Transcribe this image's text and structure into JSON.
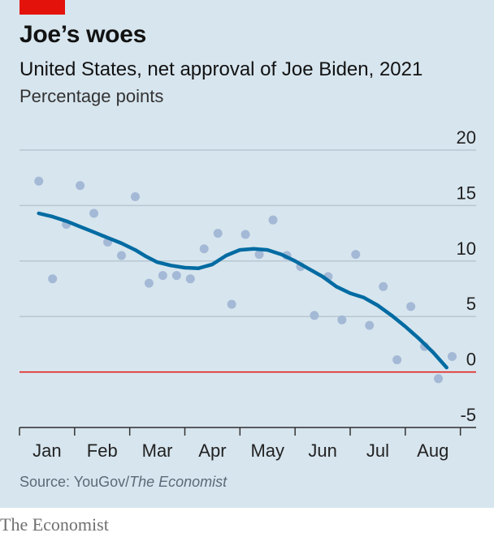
{
  "header": {
    "title": "Joe’s woes",
    "subtitle": "United States, net approval of Joe Biden, 2021",
    "unit": "Percentage points"
  },
  "footer": {
    "source_prefix": "Source: YouGov/",
    "source_italic": "The Economist",
    "brand": "The Economist"
  },
  "colors": {
    "accent": "#e3120b",
    "trend_line": "#006ba2",
    "dots": "#a4b9d6",
    "zero_line": "#e3120b",
    "gridline": "#b7c6d0",
    "panel": "#d7e5ee"
  },
  "chart_data": {
    "type": "scatter",
    "title": "Joe’s woes",
    "subtitle": "United States, net approval of Joe Biden, 2021",
    "ylabel": "Percentage points",
    "xlabel": "",
    "ylim": [
      -5,
      20
    ],
    "yticks": [
      20,
      15,
      10,
      5,
      0,
      -5
    ],
    "xlim": [
      0,
      8.3
    ],
    "xtick_labels": [
      "Jan",
      "Feb",
      "Mar",
      "Apr",
      "May",
      "Jun",
      "Jul",
      "Aug"
    ],
    "grid": true,
    "series": [
      {
        "kind": "scatter",
        "points": [
          {
            "x": 0.35,
            "y": 17.2
          },
          {
            "x": 0.6,
            "y": 8.4
          },
          {
            "x": 0.85,
            "y": 13.3
          },
          {
            "x": 1.1,
            "y": 16.8
          },
          {
            "x": 1.35,
            "y": 14.3
          },
          {
            "x": 1.6,
            "y": 11.7
          },
          {
            "x": 1.85,
            "y": 10.5
          },
          {
            "x": 2.1,
            "y": 15.8
          },
          {
            "x": 2.35,
            "y": 8.0
          },
          {
            "x": 2.6,
            "y": 8.7
          },
          {
            "x": 2.85,
            "y": 8.7
          },
          {
            "x": 3.1,
            "y": 8.4
          },
          {
            "x": 3.35,
            "y": 11.1
          },
          {
            "x": 3.6,
            "y": 12.5
          },
          {
            "x": 3.85,
            "y": 6.1
          },
          {
            "x": 4.1,
            "y": 12.4
          },
          {
            "x": 4.35,
            "y": 10.6
          },
          {
            "x": 4.6,
            "y": 13.7
          },
          {
            "x": 4.85,
            "y": 10.5
          },
          {
            "x": 5.1,
            "y": 9.5
          },
          {
            "x": 5.35,
            "y": 5.1
          },
          {
            "x": 5.6,
            "y": 8.6
          },
          {
            "x": 5.85,
            "y": 4.7
          },
          {
            "x": 6.1,
            "y": 10.6
          },
          {
            "x": 6.35,
            "y": 4.2
          },
          {
            "x": 6.6,
            "y": 7.7
          },
          {
            "x": 6.85,
            "y": 1.1
          },
          {
            "x": 7.1,
            "y": 5.9
          },
          {
            "x": 7.35,
            "y": 2.3
          },
          {
            "x": 7.6,
            "y": -0.6
          },
          {
            "x": 7.85,
            "y": 1.4
          }
        ]
      },
      {
        "kind": "trend",
        "points": [
          {
            "x": 0.35,
            "y": 14.3
          },
          {
            "x": 0.6,
            "y": 14.0
          },
          {
            "x": 0.85,
            "y": 13.6
          },
          {
            "x": 1.1,
            "y": 13.1
          },
          {
            "x": 1.35,
            "y": 12.6
          },
          {
            "x": 1.6,
            "y": 12.1
          },
          {
            "x": 1.85,
            "y": 11.6
          },
          {
            "x": 2.1,
            "y": 11.0
          },
          {
            "x": 2.3,
            "y": 10.4
          },
          {
            "x": 2.5,
            "y": 9.9
          },
          {
            "x": 2.75,
            "y": 9.6
          },
          {
            "x": 3.0,
            "y": 9.4
          },
          {
            "x": 3.25,
            "y": 9.35
          },
          {
            "x": 3.5,
            "y": 9.7
          },
          {
            "x": 3.75,
            "y": 10.5
          },
          {
            "x": 4.0,
            "y": 11.0
          },
          {
            "x": 4.25,
            "y": 11.1
          },
          {
            "x": 4.5,
            "y": 11.0
          },
          {
            "x": 4.75,
            "y": 10.6
          },
          {
            "x": 5.0,
            "y": 10.0
          },
          {
            "x": 5.25,
            "y": 9.3
          },
          {
            "x": 5.5,
            "y": 8.6
          },
          {
            "x": 5.75,
            "y": 7.7
          },
          {
            "x": 6.0,
            "y": 7.1
          },
          {
            "x": 6.25,
            "y": 6.7
          },
          {
            "x": 6.5,
            "y": 6.0
          },
          {
            "x": 6.75,
            "y": 5.1
          },
          {
            "x": 7.0,
            "y": 4.1
          },
          {
            "x": 7.25,
            "y": 3.0
          },
          {
            "x": 7.5,
            "y": 1.8
          },
          {
            "x": 7.75,
            "y": 0.4
          }
        ]
      }
    ]
  }
}
